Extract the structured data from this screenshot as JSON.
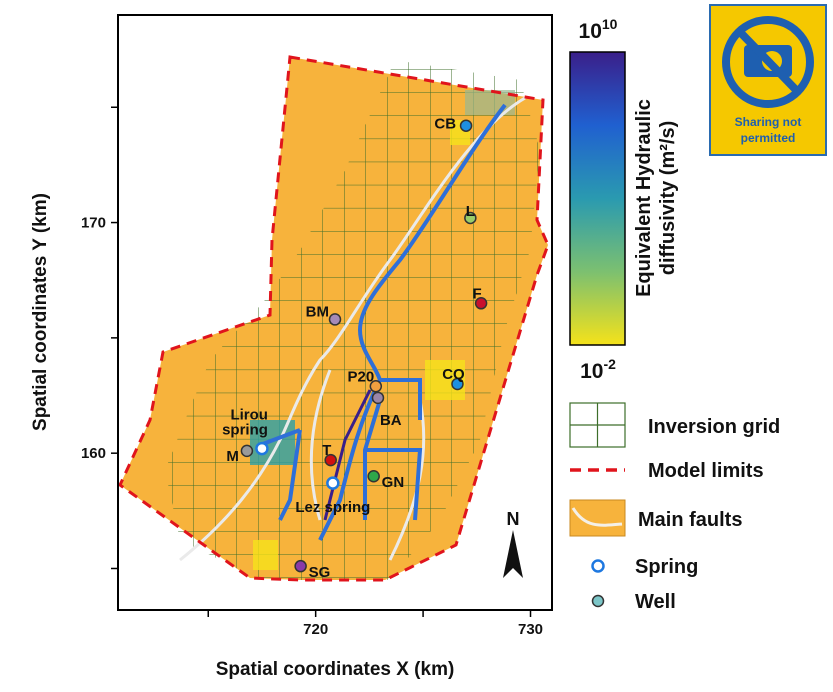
{
  "chart_data": {
    "type": "scatter",
    "xlabel": "Spatial coordinates X (km)",
    "ylabel": "Spatial coordinates Y (km)",
    "xlim": [
      710.8,
      731.0
    ],
    "ylim": [
      153.2,
      179.0
    ],
    "xticks": [
      720,
      730
    ],
    "yticks": [
      160,
      170
    ],
    "xminor_ticks": [
      715,
      725
    ],
    "yminor_ticks": [
      155,
      165,
      175
    ],
    "points": [
      {
        "label": "CB",
        "x": 727.0,
        "y": 174.2,
        "color": "#1e90e0",
        "kind": "Well"
      },
      {
        "label": "L",
        "x": 727.2,
        "y": 170.2,
        "color": "#9acd6a",
        "kind": "Well"
      },
      {
        "label": "F",
        "x": 727.7,
        "y": 166.5,
        "color": "#c8102e",
        "kind": "Well"
      },
      {
        "label": "BM",
        "x": 720.9,
        "y": 165.8,
        "color": "#a58ab8",
        "kind": "Well"
      },
      {
        "label": "CQ",
        "x": 726.6,
        "y": 163.0,
        "color": "#1e90e0",
        "kind": "Well"
      },
      {
        "label": "P20",
        "x": 722.8,
        "y": 162.9,
        "color": "#f0a040",
        "kind": "Well"
      },
      {
        "label": "BA",
        "x": 722.9,
        "y": 162.4,
        "color": "#9a86a8",
        "kind": "Well"
      },
      {
        "label": "T",
        "x": 720.7,
        "y": 159.7,
        "color": "#d01010",
        "kind": "Well"
      },
      {
        "label": "GN",
        "x": 722.7,
        "y": 159.0,
        "color": "#2ea84a",
        "kind": "Well"
      },
      {
        "label": "M",
        "x": 716.8,
        "y": 160.1,
        "color": "#9a9a9a",
        "kind": "Well"
      },
      {
        "label": "SG",
        "x": 719.3,
        "y": 155.1,
        "color": "#8a3aa8",
        "kind": "Well"
      },
      {
        "label": "Lirou spring",
        "x": 717.5,
        "y": 160.2,
        "color": "#ffffff",
        "kind": "Spring"
      },
      {
        "label": "Lez spring",
        "x": 720.8,
        "y": 158.7,
        "color": "#ffffff",
        "kind": "Spring"
      }
    ],
    "colorbar": {
      "label": "Equivalent Hydraulic diffusivity (m²/s)",
      "max": {
        "base": "10",
        "exponent": "10"
      },
      "min": {
        "base": "10",
        "exponent": "-2"
      },
      "log": true,
      "colors": [
        "#3a1f8a",
        "#2060d0",
        "#2a9ab0",
        "#7cc070",
        "#f5e21a"
      ]
    },
    "legend": [
      "Inversion grid",
      "Model limits",
      "Main faults",
      "Spring",
      "Well"
    ],
    "north_label": "N"
  },
  "badge": {
    "lines": [
      "Sharing not",
      "permitted"
    ]
  }
}
